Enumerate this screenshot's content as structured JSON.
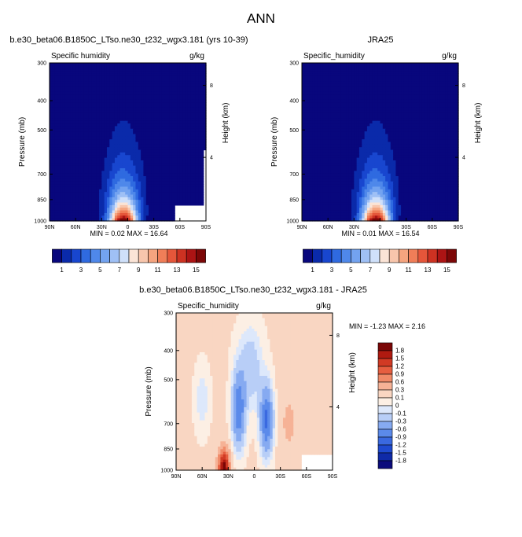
{
  "title": "ANN",
  "colors": {
    "seq": [
      "#08077d",
      "#0a2aaa",
      "#1846cf",
      "#2f6ae0",
      "#4f88ea",
      "#73a3f0",
      "#9fc0f5",
      "#cfe0fa",
      "#fbe4d6",
      "#f8c6ac",
      "#f5a47f",
      "#f07e58",
      "#e5563a",
      "#cd3222",
      "#ac1414",
      "#7c0707"
    ],
    "diff": [
      "#0b0c7c",
      "#0f2aa8",
      "#1f4ad0",
      "#3a69e0",
      "#5b8aea",
      "#86aaf1",
      "#b8cef7",
      "#dde8fb",
      "#fcefe4",
      "#f9d6c2",
      "#f6b296",
      "#f08a68",
      "#e65e40",
      "#d13a24",
      "#b01a10",
      "#7a0606"
    ]
  },
  "chart_data": [
    {
      "type": "heatmap",
      "panel": "model",
      "title": "b.e30_beta06.B1850C_LTso.ne30_t232_wgx3.181 (yrs 10-39)",
      "left_label": "Specific humidity",
      "right_label": "g/kg",
      "xlabel": "",
      "ylabel": "Pressure (mb)",
      "ylabel_right": "Height (km)",
      "x_ticks": [
        "90N",
        "60N",
        "30N",
        "0",
        "30S",
        "60S",
        "90S"
      ],
      "y_ticks": [
        "300",
        "400",
        "500",
        "700",
        "850",
        "1000"
      ],
      "height_ticks": [
        "8",
        "4"
      ],
      "stats_text": "MIN =  0.02  MAX =  16.64",
      "min": 0.02,
      "max": 16.64,
      "colorbar": {
        "labels": [
          "1",
          "3",
          "5",
          "7",
          "9",
          "11",
          "13",
          "15"
        ]
      }
    },
    {
      "type": "heatmap",
      "panel": "obs",
      "title": "JRA25",
      "left_label": "Specific_humidity",
      "right_label": "g/kg",
      "xlabel": "",
      "ylabel": "Pressure (mb)",
      "ylabel_right": "Height (km)",
      "x_ticks": [
        "90N",
        "60N",
        "30N",
        "0",
        "30S",
        "60S",
        "90S"
      ],
      "y_ticks": [
        "300",
        "400",
        "500",
        "700",
        "850",
        "1000"
      ],
      "height_ticks": [
        "8",
        "4"
      ],
      "stats_text": "MIN =  0.01  MAX =  16.54",
      "min": 0.01,
      "max": 16.54
    },
    {
      "type": "heatmap",
      "panel": "difference",
      "title": "b.e30_beta06.B1850C_LTso.ne30_t232_wgx3.181 - JRA25",
      "left_label": "Specific_humidity",
      "right_label": "g/kg",
      "xlabel": "",
      "ylabel": "Pressure (mb)",
      "ylabel_right": "Height (km)",
      "x_ticks": [
        "90N",
        "60N",
        "30N",
        "0",
        "30S",
        "60S",
        "90S"
      ],
      "y_ticks": [
        "300",
        "400",
        "500",
        "700",
        "850",
        "1000"
      ],
      "height_ticks": [
        "8",
        "4"
      ],
      "stats_text": "MIN = -1.23  MAX =  2.16",
      "min": -1.23,
      "max": 2.16,
      "colorbar": {
        "labels": [
          "1.8",
          "1.5",
          "1.2",
          "0.9",
          "0.6",
          "0.3",
          "0.1",
          "0",
          "-0.1",
          "-0.3",
          "-0.6",
          "-0.9",
          "-1.2",
          "-1.5",
          "-1.8"
        ]
      }
    }
  ]
}
